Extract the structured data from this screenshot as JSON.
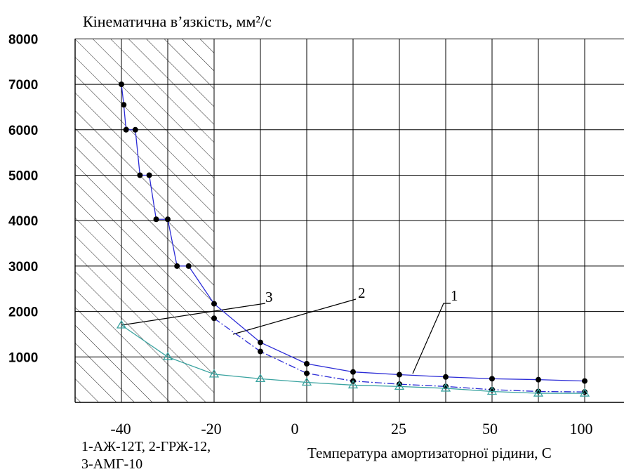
{
  "chart_data": {
    "type": "line",
    "title": "Кінематична в’язкість, мм²/с",
    "xlabel": "Температура амортизаторної рідини, С",
    "ylabel": "",
    "ylim": [
      0,
      8000
    ],
    "yticks": [
      "8000",
      "7000",
      "6000",
      "5000",
      "4000",
      "3000",
      "2000",
      "1000"
    ],
    "xticks": [
      "-40",
      "-20",
      "0",
      "25",
      "50",
      "100"
    ],
    "xgrid_count": 12,
    "grid": true,
    "hatched_region": "x grid 0 to 3 (low-temperature zone)",
    "legend_lines": [
      "1-АЖ-12Т, 2-ГРЖ-12,",
      "3-АМГ-10"
    ],
    "curve_labels": [
      "1",
      "2",
      "3"
    ],
    "colors": {
      "series12": "#2b2bd6",
      "series3": "#3aa3a0",
      "axis": "#000000"
    },
    "series": [
      {
        "name": "1",
        "points": [
          [
            1,
            7000
          ],
          [
            1.05,
            6550
          ],
          [
            1.1,
            6000
          ],
          [
            1.3,
            6000
          ],
          [
            1.4,
            5000
          ],
          [
            1.6,
            5000
          ],
          [
            1.75,
            4030
          ],
          [
            2,
            4030
          ],
          [
            2.2,
            3000
          ],
          [
            2.45,
            3000
          ],
          [
            3,
            2170
          ],
          [
            4,
            1320
          ],
          [
            5,
            850
          ],
          [
            6,
            670
          ],
          [
            7,
            610
          ],
          [
            8,
            560
          ],
          [
            9,
            520
          ],
          [
            10,
            500
          ],
          [
            11,
            470
          ]
        ]
      },
      {
        "name": "2",
        "points": [
          [
            3,
            1850
          ],
          [
            4,
            1120
          ],
          [
            5,
            640
          ],
          [
            6,
            470
          ],
          [
            7,
            400
          ],
          [
            8,
            350
          ],
          [
            9,
            280
          ],
          [
            10,
            240
          ],
          [
            11,
            230
          ]
        ]
      },
      {
        "name": "3",
        "points": [
          [
            1,
            1700
          ],
          [
            2,
            1000
          ],
          [
            3,
            620
          ],
          [
            4,
            520
          ],
          [
            5,
            440
          ],
          [
            6,
            380
          ],
          [
            7,
            350
          ],
          [
            8,
            310
          ],
          [
            9,
            240
          ],
          [
            10,
            200
          ],
          [
            11,
            200
          ]
        ]
      }
    ]
  }
}
